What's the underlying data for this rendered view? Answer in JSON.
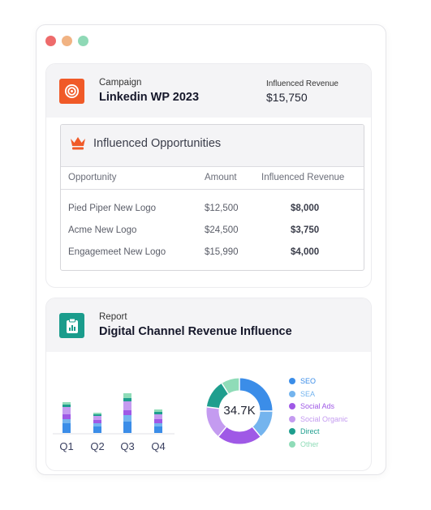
{
  "campaign": {
    "label": "Campaign",
    "name": "Linkedin WP 2023",
    "revenue_label": "Influenced Revenue",
    "revenue_value": "$15,750"
  },
  "opportunities": {
    "title": "Influenced Opportunities",
    "columns": [
      "Opportunity",
      "Amount",
      "Influenced Revenue"
    ],
    "rows": [
      {
        "opportunity": "Pied Piper New Logo",
        "amount": "$12,500",
        "influenced": "$8,000"
      },
      {
        "opportunity": "Acme New Logo",
        "amount": "$24,500",
        "influenced": "$3,750"
      },
      {
        "opportunity": "Engagemeet New Logo",
        "amount": "$15,990",
        "influenced": "$4,000"
      }
    ]
  },
  "report": {
    "label": "Report",
    "name": "Digital Channel Revenue Influence",
    "donut_center": "34.7K"
  },
  "chart_data": [
    {
      "type": "bar",
      "stacked": true,
      "categories": [
        "Q1",
        "Q2",
        "Q3",
        "Q4"
      ],
      "series": [
        {
          "name": "SEO",
          "color": "#3b8de8",
          "values": [
            12,
            8,
            14,
            8
          ]
        },
        {
          "name": "SEA",
          "color": "#74b4ee",
          "values": [
            5,
            4,
            8,
            4
          ]
        },
        {
          "name": "Social Ads",
          "color": "#9f59e6",
          "values": [
            6,
            4,
            6,
            5
          ]
        },
        {
          "name": "Social Organic",
          "color": "#c49bf0",
          "values": [
            9,
            5,
            11,
            6
          ]
        },
        {
          "name": "Direct",
          "color": "#1e9e8e",
          "values": [
            3,
            2,
            4,
            3
          ]
        },
        {
          "name": "Other",
          "color": "#8fdcb8",
          "values": [
            3,
            2,
            6,
            3
          ]
        }
      ]
    },
    {
      "type": "pie",
      "donut": true,
      "categories": [
        "SEO",
        "SEA",
        "Social Ads",
        "Social Organic",
        "Direct",
        "Other"
      ],
      "colors": [
        "#3b8de8",
        "#74b4ee",
        "#9f59e6",
        "#c49bf0",
        "#1e9e8e",
        "#8fdcb8"
      ],
      "values": [
        25,
        14,
        22,
        16,
        14,
        9
      ]
    }
  ]
}
